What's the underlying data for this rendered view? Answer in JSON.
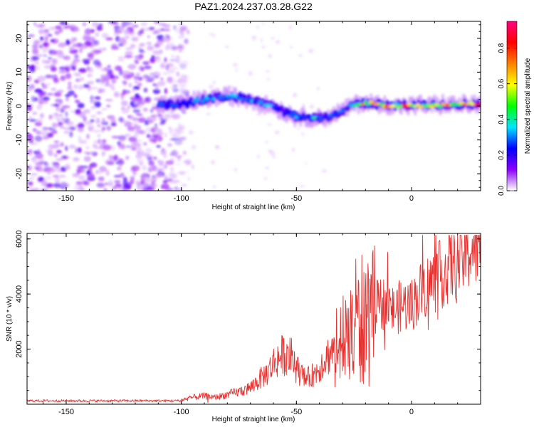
{
  "title": "PAZ1.2024.237.03.28.G22",
  "chart_data": [
    {
      "type": "heatmap",
      "xlabel": "Height of straight line (km)",
      "ylabel": "Frequency (Hz)",
      "xlim": [
        -167,
        30
      ],
      "ylim": [
        -25,
        25
      ],
      "xticks": [
        -150,
        -100,
        -50,
        0
      ],
      "yticks": [
        -20,
        -10,
        0,
        10,
        20
      ],
      "grid": false,
      "noise_region_x": [
        -167,
        -97
      ],
      "ridge": {
        "x": [
          -110,
          -100,
          -90,
          -80,
          -70,
          -60,
          -55,
          -50,
          -45,
          -40,
          -35,
          -30,
          -25,
          -20,
          -15,
          -10,
          -5,
          0,
          10,
          20,
          30
        ],
        "y": [
          0.5,
          0.5,
          2,
          3,
          2,
          0,
          -2,
          -3,
          -3.5,
          -3.5,
          -3,
          -1.5,
          0.5,
          1,
          0.5,
          0.2,
          0.2,
          0.2,
          0.3,
          0.4,
          0.5
        ]
      },
      "colorbar": {
        "label": "Normalized spectral amplitude",
        "range": [
          0,
          0.95
        ],
        "ticks": [
          "0.0",
          "0.2",
          "0.4",
          "0.6",
          "0.8"
        ],
        "tick_values": [
          0,
          0.2,
          0.4,
          0.6,
          0.8
        ],
        "colors": [
          "#ffffff",
          "#8a00ff",
          "#0000ff",
          "#00e5ff",
          "#00ff00",
          "#ffff00",
          "#ff8000",
          "#ff0000",
          "#ff0080"
        ]
      }
    },
    {
      "type": "line",
      "xlabel": "Height of straight line (km)",
      "ylabel": "SNR (10 * v/v)",
      "xlim": [
        -167,
        30
      ],
      "ylim": [
        0,
        6200
      ],
      "xticks": [
        -150,
        -100,
        -50,
        0
      ],
      "yticks": [
        2000,
        4000,
        6000
      ],
      "grid": false,
      "series": [
        {
          "color": "#e8302e",
          "x": [
            -167,
            -150,
            -130,
            -110,
            -100,
            -95,
            -90,
            -85,
            -80,
            -75,
            -70,
            -66,
            -62,
            -60,
            -56,
            -52,
            -50,
            -46,
            -42,
            -38,
            -34,
            -30,
            -26,
            -24,
            -22,
            -20,
            -16,
            -12,
            -8,
            -4,
            0,
            5,
            10,
            15,
            20,
            25,
            30
          ],
          "y": [
            100,
            100,
            100,
            100,
            150,
            250,
            300,
            250,
            350,
            450,
            600,
            900,
            1200,
            1500,
            1800,
            1700,
            1300,
            900,
            1100,
            1600,
            2000,
            2400,
            2900,
            3300,
            3400,
            3200,
            3500,
            3700,
            3400,
            3600,
            3600,
            4200,
            4500,
            4900,
            5200,
            5600,
            5800
          ]
        }
      ]
    }
  ]
}
